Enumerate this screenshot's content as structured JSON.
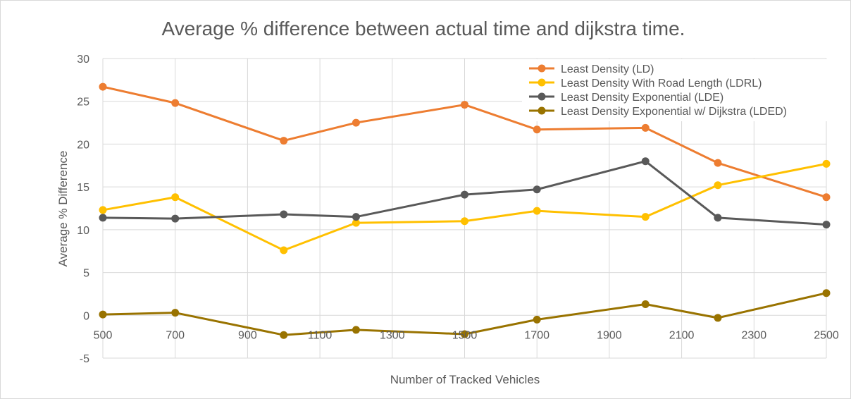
{
  "chart_data": {
    "type": "line",
    "title": "Average % difference between actual time and dijkstra time.",
    "xlabel": "Number of Tracked Vehicles",
    "ylabel": "Average % Difference",
    "xlim": [
      500,
      2500
    ],
    "ylim": [
      -5,
      30
    ],
    "x_ticks": [
      "500",
      "700",
      "900",
      "1100",
      "1300",
      "1500",
      "1700",
      "1900",
      "2100",
      "2300",
      "2500"
    ],
    "y_ticks": [
      "30",
      "25",
      "20",
      "15",
      "10",
      "5",
      "0",
      "-5"
    ],
    "grid": true,
    "legend_position": "top-right",
    "x": [
      500,
      700,
      1000,
      1200,
      1500,
      1700,
      2000,
      2200,
      2500
    ],
    "series": [
      {
        "name": "Least Density (LD)",
        "color": "#ED7D31",
        "values": [
          26.7,
          24.8,
          20.4,
          22.5,
          24.6,
          21.7,
          21.9,
          17.8,
          13.8
        ]
      },
      {
        "name": "Least Density With Road Length (LDRL)",
        "color": "#FFC000",
        "values": [
          12.3,
          13.8,
          7.6,
          10.8,
          11.0,
          12.2,
          11.5,
          15.2,
          17.7
        ]
      },
      {
        "name": "Least Density Exponential (LDE)",
        "color": "#595959",
        "values": [
          11.4,
          11.3,
          11.8,
          11.5,
          14.1,
          14.7,
          18.0,
          11.4,
          10.6
        ]
      },
      {
        "name": "Least Density Exponential w/ Dijkstra (LDED)",
        "color": "#997300",
        "values": [
          0.1,
          0.3,
          -2.3,
          -1.7,
          -2.2,
          -0.5,
          1.3,
          -0.3,
          2.6
        ]
      }
    ]
  }
}
